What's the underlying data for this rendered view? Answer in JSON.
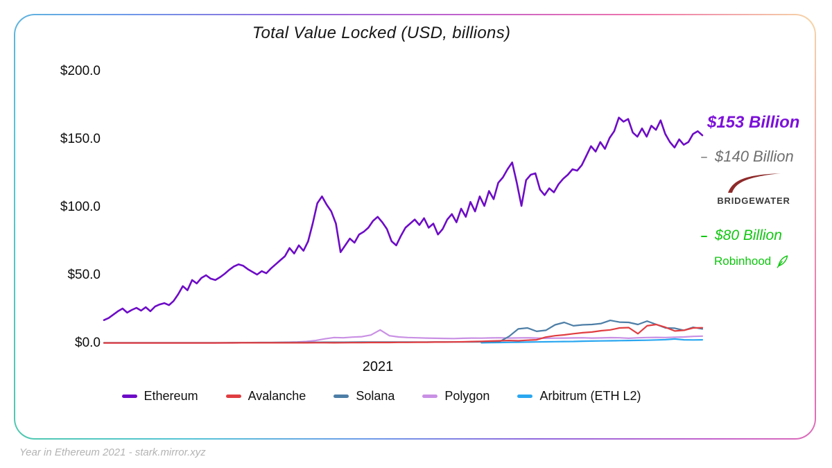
{
  "chart_data": {
    "type": "line",
    "title": "Total Value Locked (USD, billions)",
    "xlabel": "",
    "ylabel": "Total Value Locked (USD, billions)",
    "x_range": "Jan 2021 - Dec 2021",
    "x_ticks": [
      "2021"
    ],
    "ylim": [
      0,
      210
    ],
    "grid": false,
    "legend_position": "bottom",
    "y_ticks": [
      {
        "value": 200,
        "label": "$200.0"
      },
      {
        "value": 150,
        "label": "$150.0"
      },
      {
        "value": 100,
        "label": "$100.0"
      },
      {
        "value": 50,
        "label": "$50.0"
      },
      {
        "value": 0,
        "label": "$0.0"
      }
    ],
    "series": [
      {
        "name": "Arbitrum (ETH L2)",
        "color": "#2aa7f0",
        "values": [
          null,
          null,
          null,
          null,
          null,
          null,
          null,
          null,
          null,
          null,
          null,
          null,
          null,
          null,
          null,
          null,
          null,
          null,
          null,
          null,
          null,
          null,
          null,
          null,
          null,
          null,
          null,
          null,
          null,
          null,
          null,
          null,
          null,
          null,
          null,
          null,
          null,
          null,
          null,
          null,
          null,
          0.3,
          0.4,
          0.5,
          0.6,
          0.7,
          0.8,
          0.9,
          1.0,
          1.1,
          1.2,
          1.3,
          1.5,
          1.6,
          1.7,
          1.8,
          1.9,
          2.0,
          2.1,
          2.2,
          2.4,
          2.6,
          3.1,
          2.5,
          2.4,
          2.5
        ]
      },
      {
        "name": "Polygon",
        "color": "#c990e4",
        "values": [
          0.15,
          0.15,
          0.15,
          0.15,
          0.15,
          0.15,
          0.15,
          0.15,
          0.15,
          0.15,
          0.15,
          0.15,
          0.2,
          0.2,
          0.25,
          0.3,
          0.3,
          0.35,
          0.4,
          0.5,
          0.7,
          0.9,
          1.3,
          2.0,
          3.2,
          4.2,
          4.0,
          4.5,
          4.8,
          6.0,
          9.8,
          5.5,
          4.6,
          4.2,
          4.0,
          3.8,
          3.6,
          3.5,
          3.4,
          3.6,
          3.8,
          3.7,
          3.9,
          4.0,
          3.8,
          3.9,
          4.0,
          3.8,
          3.6,
          3.7,
          3.8,
          3.9,
          4.0,
          3.8,
          3.9,
          4.1,
          4.0,
          3.6,
          4.0,
          4.2,
          4.3,
          4.2,
          4.4,
          4.6,
          5.0,
          5.2
        ]
      },
      {
        "name": "Solana",
        "color": "#4d7ea6",
        "values": [
          0.3,
          0.3,
          0.3,
          0.3,
          0.3,
          0.3,
          0.3,
          0.3,
          0.3,
          0.3,
          0.3,
          0.3,
          0.35,
          0.35,
          0.4,
          0.4,
          0.45,
          0.5,
          0.5,
          0.55,
          0.6,
          0.6,
          0.6,
          0.65,
          0.7,
          0.7,
          0.7,
          0.75,
          0.8,
          0.8,
          0.8,
          0.8,
          0.8,
          0.8,
          0.8,
          0.85,
          0.9,
          0.9,
          0.9,
          0.9,
          0.9,
          1.0,
          1.1,
          1.2,
          5.0,
          10.5,
          11.2,
          8.7,
          9.5,
          13.5,
          15.3,
          12.8,
          13.5,
          13.8,
          14.5,
          16.8,
          15.5,
          15.3,
          13.8,
          16.3,
          13.8,
          11.2,
          11.0,
          9.5,
          11.7,
          10.5
        ]
      },
      {
        "name": "Avalanche",
        "color": "#e03e41",
        "values": [
          0.2,
          0.2,
          0.2,
          0.2,
          0.2,
          0.2,
          0.2,
          0.2,
          0.2,
          0.2,
          0.2,
          0.2,
          0.2,
          0.25,
          0.25,
          0.3,
          0.3,
          0.3,
          0.3,
          0.3,
          0.3,
          0.3,
          0.3,
          0.35,
          0.35,
          0.3,
          0.35,
          0.4,
          0.4,
          0.5,
          0.5,
          0.5,
          0.6,
          0.6,
          0.7,
          0.7,
          0.8,
          0.8,
          0.9,
          1.0,
          1.2,
          1.4,
          1.6,
          1.8,
          2.0,
          1.8,
          2.2,
          2.5,
          4.5,
          5.5,
          6.1,
          7.0,
          7.7,
          8.2,
          9.2,
          9.8,
          11.2,
          11.5,
          7.0,
          12.8,
          13.8,
          11.7,
          9.0,
          9.5,
          11.2,
          11.4
        ]
      },
      {
        "name": "Ethereum",
        "color": "#6d0bc7",
        "values": [
          17,
          18.5,
          21,
          23.5,
          25.5,
          22.5,
          24.5,
          26,
          24,
          26.5,
          23.5,
          27,
          28.5,
          29.5,
          28,
          31,
          36,
          42,
          39,
          46.5,
          44,
          48,
          50,
          47.5,
          46.5,
          48.5,
          51,
          54,
          56.5,
          58,
          57,
          54.5,
          52.5,
          50.5,
          53,
          51.5,
          55,
          58,
          61,
          64,
          70,
          66,
          72,
          68,
          75,
          88,
          103,
          108,
          102,
          97,
          88,
          67,
          72,
          77,
          74,
          80,
          82,
          85,
          90,
          93,
          89,
          84,
          75,
          72,
          79,
          85,
          88,
          91,
          87,
          92,
          85,
          88,
          80,
          84,
          91,
          95,
          89,
          99,
          93,
          104,
          97,
          108,
          101,
          112,
          106,
          118,
          122,
          128,
          133,
          118,
          101,
          120,
          124,
          125,
          113,
          109,
          114,
          111,
          117,
          121,
          124,
          128,
          127,
          131,
          138,
          145,
          141,
          148,
          143,
          151,
          156,
          166,
          163,
          165,
          155,
          152,
          158,
          152,
          160,
          157,
          164,
          154,
          148,
          144,
          150,
          146,
          148,
          154,
          156,
          153
        ]
      }
    ],
    "legend_order": [
      "Ethereum",
      "Avalanche",
      "Solana",
      "Polygon",
      "Arbitrum (ETH L2)"
    ]
  },
  "annotations": {
    "ethereum": {
      "label": "$153 Billion",
      "value": 153,
      "color": "#7c10da"
    },
    "bridgewater": {
      "label": "$140 Billion",
      "value": 140,
      "brand": "BRIDGEWATER",
      "color": "#6f6f6f",
      "swoosh_color": "#8e2a2a"
    },
    "robinhood": {
      "label": "$80 Billion",
      "value": 80,
      "brand": "Robinhood",
      "color": "#12c712"
    }
  },
  "attribution": {
    "text": "Year in Ethereum 2021 - stark.mirror.xyz"
  },
  "border_gradient": [
    "#4fc8ae",
    "#55c4d6",
    "#6d9ce9",
    "#9168de",
    "#c362cc",
    "#ee74ac",
    "#f6d7a7"
  ]
}
